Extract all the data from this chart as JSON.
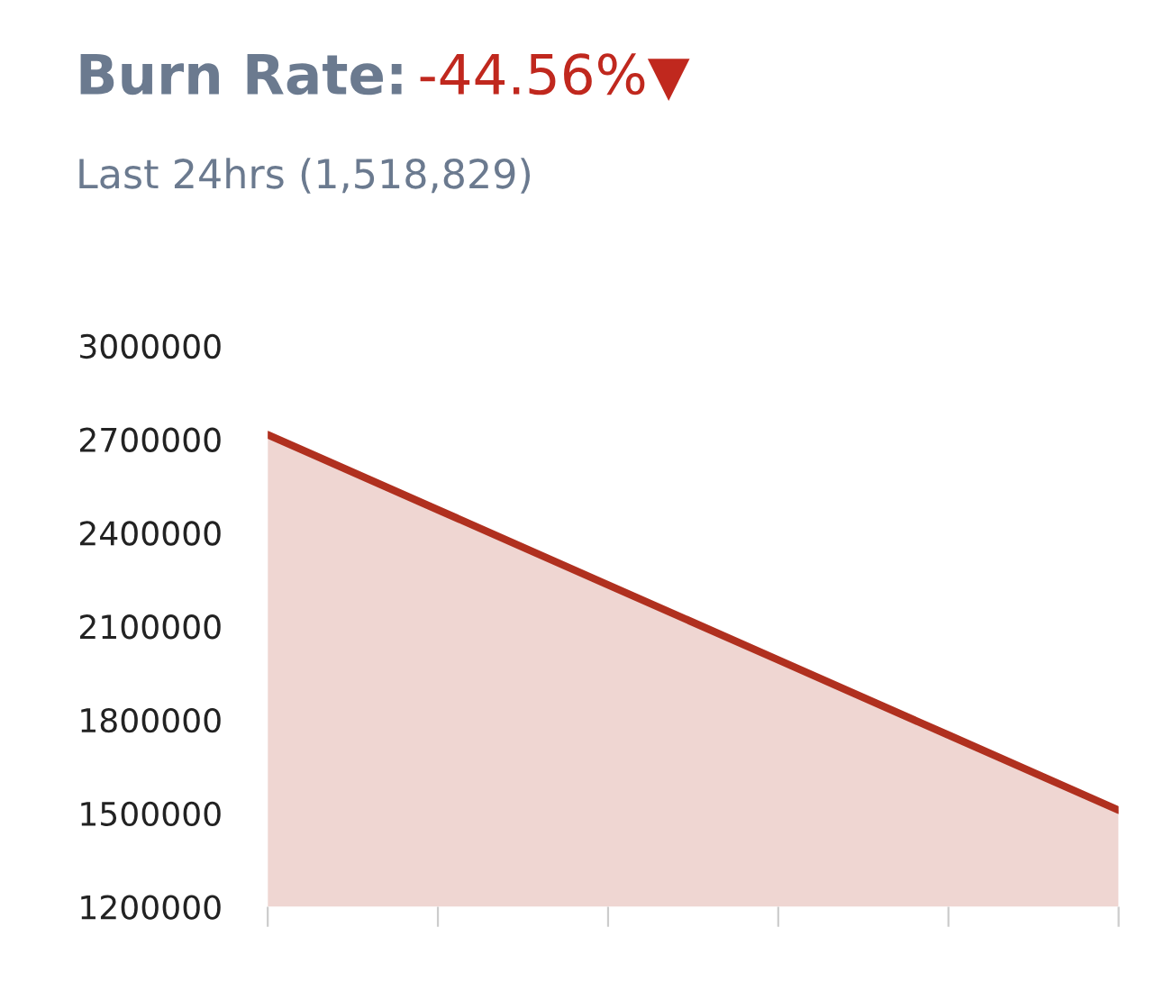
{
  "chart_data": {
    "type": "area",
    "title": "Burn Rate:",
    "subtitle": "Last 24hrs (1,518,829)",
    "annotations": [
      "-44.56%▼"
    ],
    "categories": [
      null,
      null,
      null,
      null,
      null,
      null
    ],
    "series": [
      {
        "color": "#b0301f",
        "values": [
          2715000,
          2474000,
          2233000,
          1992000,
          1751000,
          1510000
        ]
      }
    ],
    "ylim": [
      1200000,
      3000000
    ],
    "yticks": [
      1200000,
      1500000,
      1800000,
      2100000,
      2400000,
      2700000,
      3000000
    ],
    "grid": false,
    "legend": false
  }
}
